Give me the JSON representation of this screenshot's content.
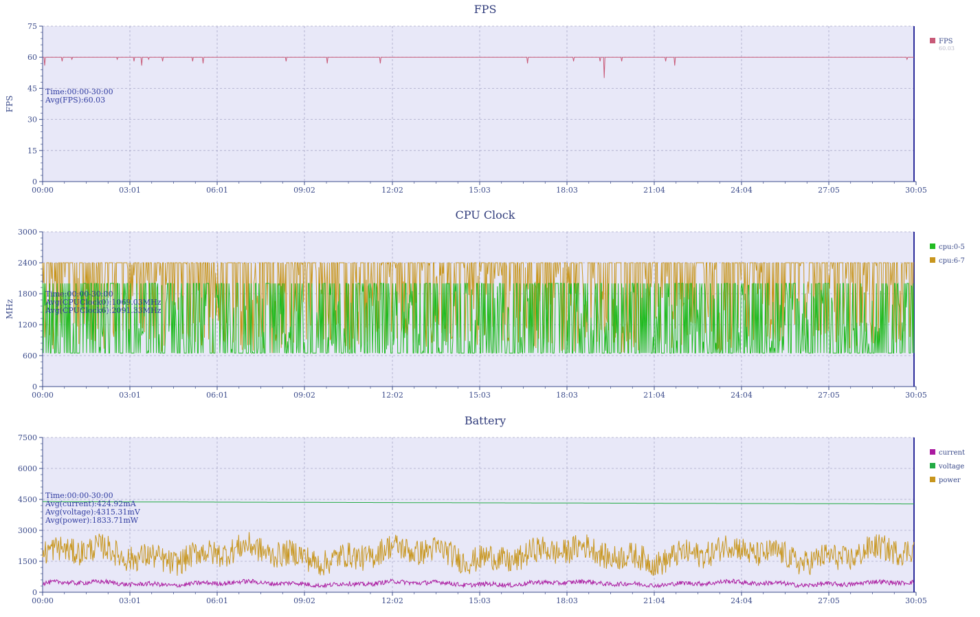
{
  "chart_data": [
    {
      "type": "line",
      "title": "FPS",
      "ylabel": "FPS",
      "ylim": [
        0,
        75
      ],
      "yticks": [
        0,
        15,
        30,
        45,
        60,
        75
      ],
      "xticks": [
        "00:00",
        "03:01",
        "06:01",
        "09:02",
        "12:02",
        "15:03",
        "18:03",
        "21:04",
        "24:04",
        "27:05",
        "30:05"
      ],
      "xlim_seconds": [
        0,
        1805
      ],
      "annotations": [
        "Time:00:00-30:00",
        "Avg(FPS):60.03"
      ],
      "series": [
        {
          "name": "FPS",
          "legend_value": "60.03",
          "color": "#c85a78",
          "baseline": 60,
          "dips": [
            [
              5,
              56
            ],
            [
              40,
              58
            ],
            [
              60,
              59
            ],
            [
              155,
              59
            ],
            [
              190,
              58
            ],
            [
              205,
              56
            ],
            [
              220,
              59
            ],
            [
              248,
              58
            ],
            [
              310,
              58
            ],
            [
              332,
              57
            ],
            [
              505,
              58
            ],
            [
              590,
              57
            ],
            [
              700,
              57
            ],
            [
              1004,
              57
            ],
            [
              1100,
              58
            ],
            [
              1155,
              58
            ],
            [
              1163,
              50
            ],
            [
              1200,
              58
            ],
            [
              1290,
              58
            ],
            [
              1310,
              56
            ],
            [
              1790,
              59
            ]
          ]
        }
      ]
    },
    {
      "type": "line",
      "title": "CPU Clock",
      "ylabel": "MHz",
      "ylim": [
        0,
        3000
      ],
      "yticks": [
        0,
        600,
        1200,
        1800,
        2400,
        3000
      ],
      "xticks": [
        "00:00",
        "03:01",
        "06:01",
        "09:02",
        "12:02",
        "15:03",
        "18:03",
        "21:04",
        "24:04",
        "27:05",
        "30:05"
      ],
      "xlim_seconds": [
        0,
        1805
      ],
      "annotations": [
        "Time:00:00-30:00",
        "Avg(CPUClock0):1069.03MHz",
        "Avg(CPUClock6):2091.33MHz"
      ],
      "series": [
        {
          "name": "cpu:0-5",
          "color": "#22bb22",
          "min": 650,
          "max": 2000,
          "mean": 1069.03
        },
        {
          "name": "cpu:6-7",
          "color": "#c8961e",
          "min": 650,
          "max": 2400,
          "mean": 2091.33
        }
      ]
    },
    {
      "type": "line",
      "title": "Battery",
      "ylabel": "",
      "ylim": [
        0,
        7500
      ],
      "yticks": [
        0,
        1500,
        3000,
        4500,
        6000,
        7500
      ],
      "xticks": [
        "00:00",
        "03:01",
        "06:01",
        "09:02",
        "12:02",
        "15:03",
        "18:03",
        "21:04",
        "24:04",
        "27:05",
        "30:05"
      ],
      "xlim_seconds": [
        0,
        1805
      ],
      "annotations": [
        "Time:00:00-30:00",
        "Avg(current):424.92mA",
        "Avg(voltage):4315.31mV",
        "Avg(power):1833.71mW"
      ],
      "series": [
        {
          "name": "current",
          "color": "#aa1aa0",
          "mean": 424.92,
          "min": 250,
          "max": 650
        },
        {
          "name": "voltage",
          "color": "#22aa44",
          "start": 4390,
          "end": 4280,
          "mean": 4315.31
        },
        {
          "name": "power",
          "color": "#c8961e",
          "mean": 1833.71,
          "min": 800,
          "max": 3100
        }
      ]
    }
  ]
}
